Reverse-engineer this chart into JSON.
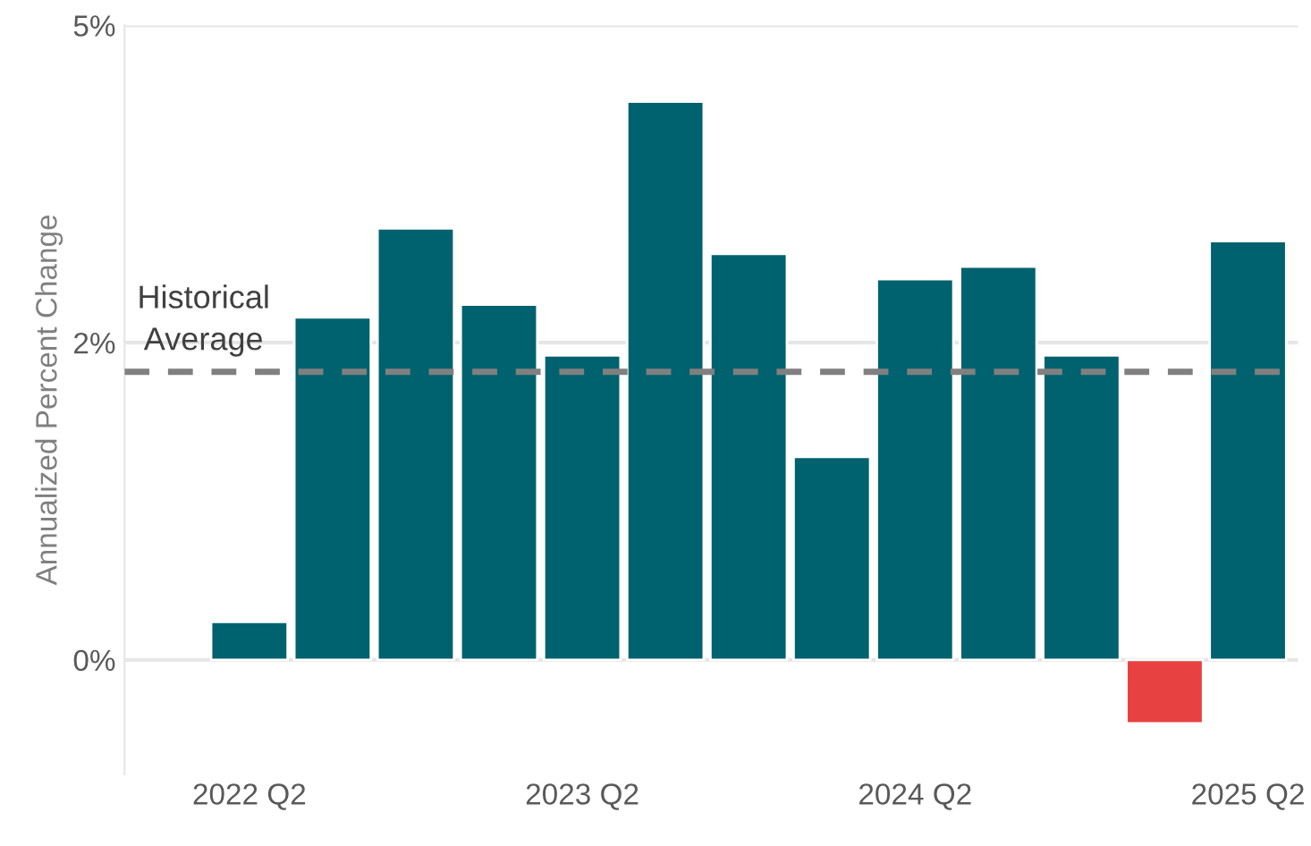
{
  "chart_data": {
    "type": "bar",
    "ylabel": "Annualized Percent Change",
    "categories": [
      "2022 Q2",
      null,
      null,
      null,
      "2023 Q2",
      null,
      null,
      null,
      "2024 Q2",
      null,
      null,
      null,
      "2025 Q2"
    ],
    "values": [
      0.3,
      2.7,
      3.4,
      2.8,
      2.4,
      4.4,
      3.2,
      1.6,
      3.0,
      3.1,
      2.4,
      -0.5,
      3.3
    ],
    "colors": [
      "#00626f",
      "#00626f",
      "#00626f",
      "#00626f",
      "#00626f",
      "#00626f",
      "#00626f",
      "#00626f",
      "#00626f",
      "#00626f",
      "#00626f",
      "#e84142",
      "#00626f"
    ],
    "ylim": [
      -0.9,
      5
    ],
    "yticks": [
      {
        "value": 0,
        "label": "0%"
      },
      {
        "value": 2.5,
        "label": "2%"
      },
      {
        "value": 5,
        "label": "5%"
      }
    ],
    "grid": "y",
    "legend": false,
    "ref_lines": [
      {
        "axis": "y",
        "value": 2.27,
        "label": "Historical\nAverage",
        "color": "#808080",
        "line_style": "dashed"
      }
    ]
  }
}
